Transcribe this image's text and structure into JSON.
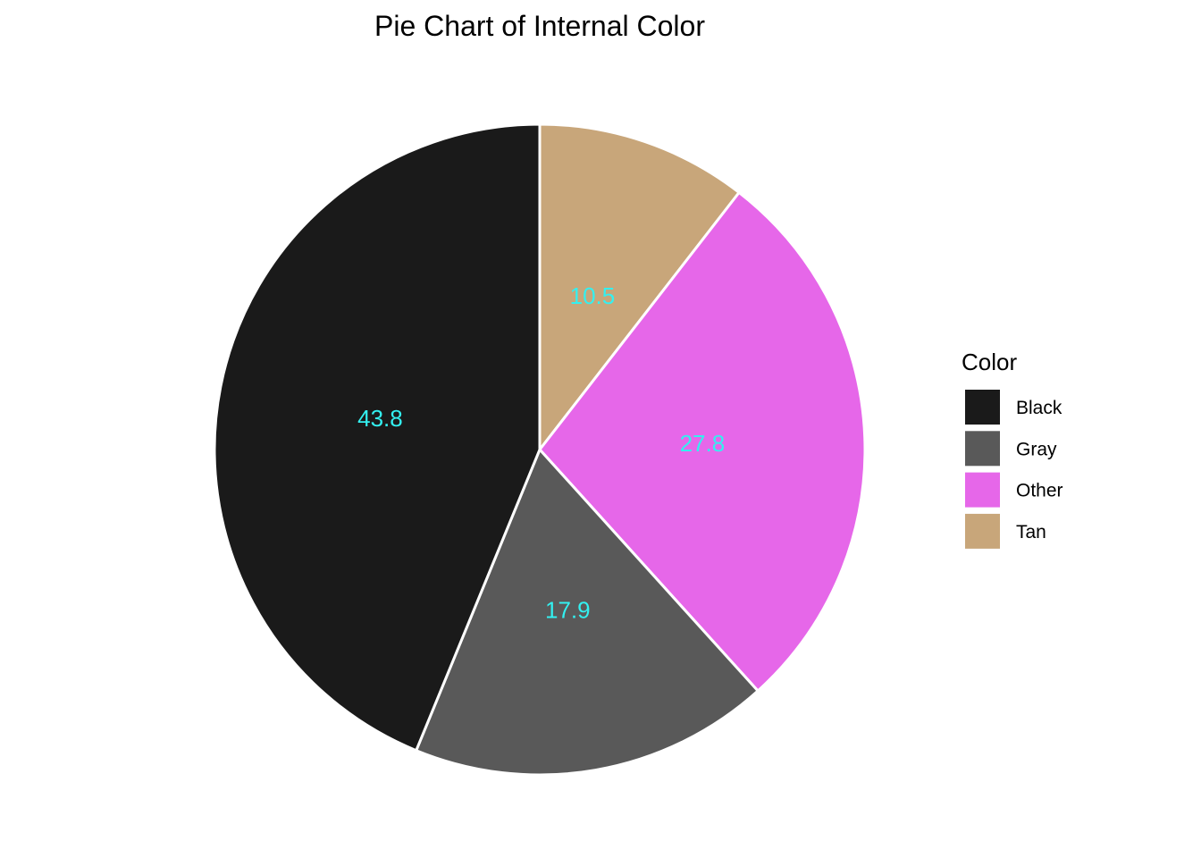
{
  "chart_data": {
    "type": "pie",
    "title": "Pie Chart of Internal Color",
    "legend_title": "Color",
    "legend_position": "right",
    "start_angle_deg": 0,
    "direction": "clockwise-in-order-tan-other-gray-black",
    "label_color": "#33f0f0",
    "slice_border_color": "#ffffff",
    "slices": [
      {
        "category": "Black",
        "value": 43.8,
        "label": "43.8",
        "color": "#1a1a1a"
      },
      {
        "category": "Gray",
        "value": 17.9,
        "label": "17.9",
        "color": "#595959"
      },
      {
        "category": "Other",
        "value": 27.8,
        "label": "27.8",
        "color": "#e667e9"
      },
      {
        "category": "Tan",
        "value": 10.5,
        "label": "10.5",
        "color": "#c8a67a"
      }
    ]
  }
}
